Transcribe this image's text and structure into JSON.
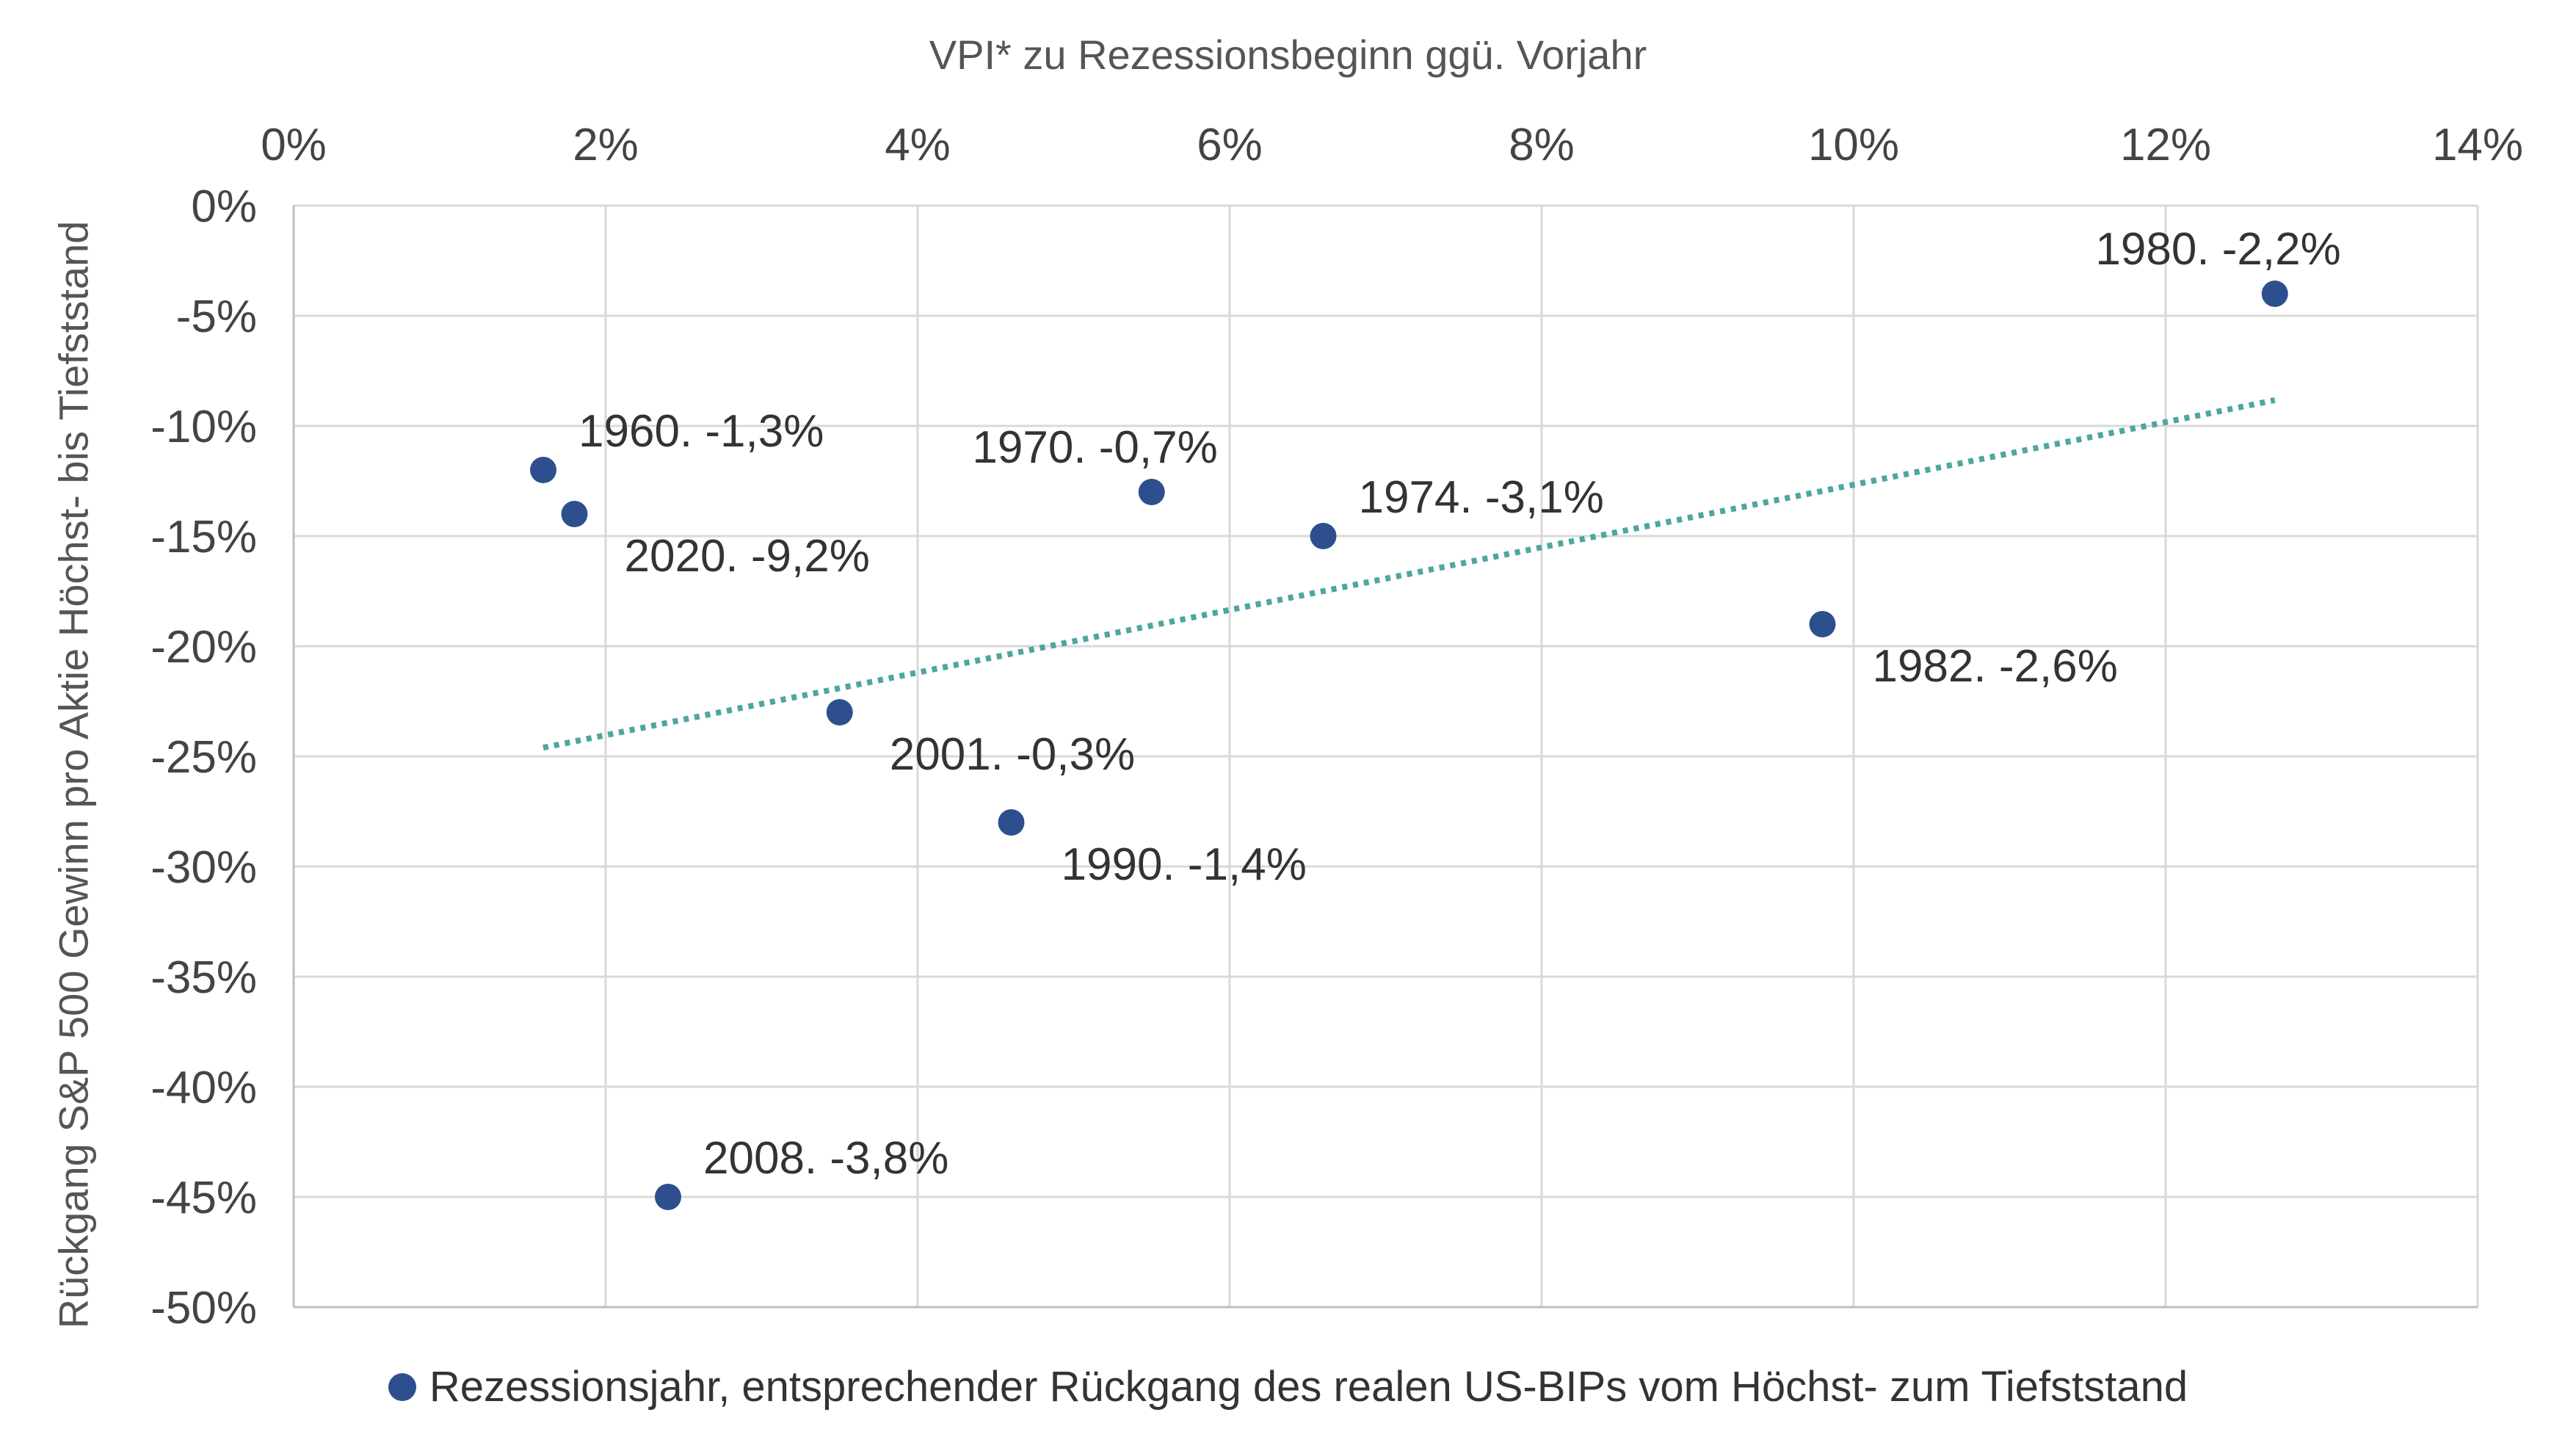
{
  "chart_data": {
    "type": "scatter",
    "x_title": "VPI* zu Rezessionsbeginn ggü. Vorjahr",
    "y_title": "Rückgang S&P 500 Gewinn pro Aktie Höchst- bis Tiefststand",
    "xlim": [
      0,
      14
    ],
    "ylim": [
      -50,
      0
    ],
    "x_ticks": [
      {
        "value": 0,
        "label": "0%"
      },
      {
        "value": 2,
        "label": "2%"
      },
      {
        "value": 4,
        "label": "4%"
      },
      {
        "value": 6,
        "label": "6%"
      },
      {
        "value": 8,
        "label": "8%"
      },
      {
        "value": 10,
        "label": "10%"
      },
      {
        "value": 12,
        "label": "12%"
      },
      {
        "value": 14,
        "label": "14%"
      }
    ],
    "y_ticks": [
      {
        "value": 0,
        "label": "0%"
      },
      {
        "value": -5,
        "label": "-5%"
      },
      {
        "value": -10,
        "label": "-10%"
      },
      {
        "value": -15,
        "label": "-15%"
      },
      {
        "value": -20,
        "label": "-20%"
      },
      {
        "value": -25,
        "label": "-25%"
      },
      {
        "value": -30,
        "label": "-30%"
      },
      {
        "value": -35,
        "label": "-35%"
      },
      {
        "value": -40,
        "label": "-40%"
      },
      {
        "value": -45,
        "label": "-45%"
      },
      {
        "value": -50,
        "label": "-50%"
      }
    ],
    "x_axis_position": "top",
    "grid": true,
    "series": [
      {
        "name": "Rezessionsjahr, entsprechender Rückgang des realen US-BIPs vom Höchst- zum Tiefststand",
        "color": "#2d4f8e",
        "points": [
          {
            "x": 1.6,
            "y": -12,
            "label": "1960. -1,3%",
            "label_pos": "upper-right"
          },
          {
            "x": 1.8,
            "y": -14,
            "label": "2020. -9,2%",
            "label_pos": "lower-right"
          },
          {
            "x": 2.4,
            "y": -45,
            "label": "2008. -3,8%",
            "label_pos": "upper-right"
          },
          {
            "x": 3.5,
            "y": -23,
            "label": "2001. -0,3%",
            "label_pos": "lower-right"
          },
          {
            "x": 4.6,
            "y": -28,
            "label": "1990. -1,4%",
            "label_pos": "lower-right"
          },
          {
            "x": 5.5,
            "y": -13,
            "label": "1970. -0,7%",
            "label_pos": "upper-left"
          },
          {
            "x": 6.6,
            "y": -15,
            "label": "1974. -3,1%",
            "label_pos": "upper-right"
          },
          {
            "x": 9.8,
            "y": -19,
            "label": "1982. -2,6%",
            "label_pos": "lower-right"
          },
          {
            "x": 12.7,
            "y": -4,
            "label": "1980. -2,2%",
            "label_pos": "upper-left"
          }
        ]
      }
    ],
    "trendline": {
      "type": "linear",
      "style": "dotted",
      "color": "#4ea6a0"
    },
    "legend": {
      "position": "bottom",
      "label": "Rezessionsjahr, entsprechender Rückgang des realen US-BIPs vom Höchst- zum Tiefststand"
    }
  }
}
